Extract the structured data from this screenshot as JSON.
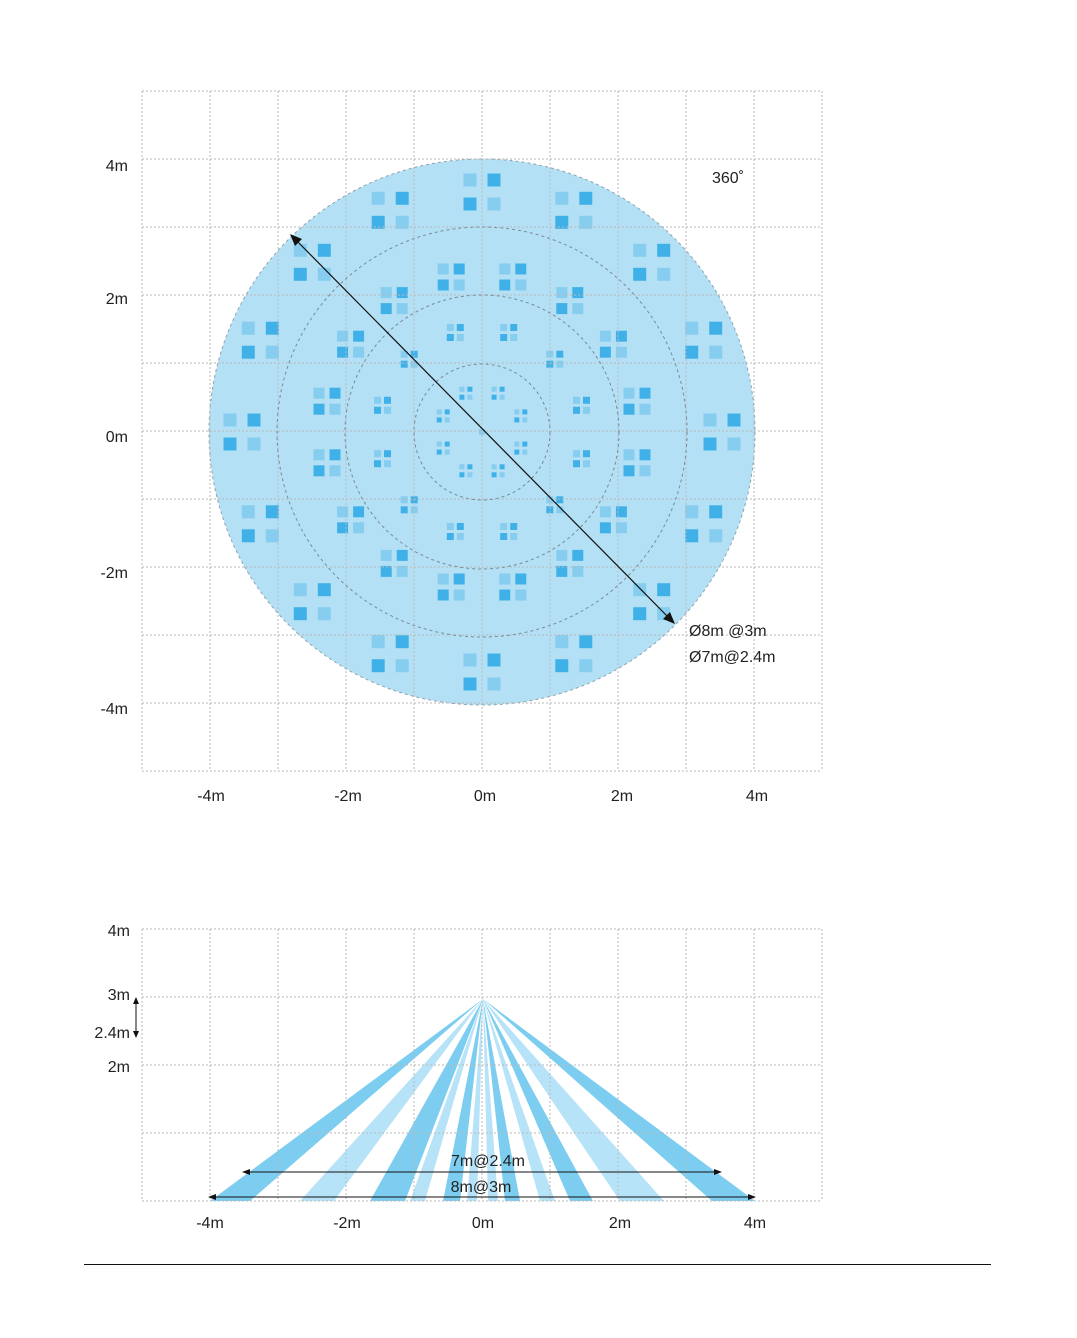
{
  "top_view": {
    "y_ticks": [
      "4m",
      "2m",
      "0m",
      "-2m",
      "-4m"
    ],
    "x_ticks": [
      "-4m",
      "-2m",
      "0m",
      "2m",
      "4m"
    ],
    "angle_label": "360˚",
    "diameter_label_1": "Ø8m @3m",
    "diameter_label_2": "Ø7m@2.4m",
    "coverage_diameter_m": 8,
    "colors": {
      "coverage": "#b3e0f5",
      "zone_dark": "#3fb1e8",
      "zone_light": "#86cdef"
    }
  },
  "side_view": {
    "y_ticks": [
      "4m",
      "3m",
      "2.4m",
      "2m"
    ],
    "x_ticks": [
      "-4m",
      "-2m",
      "0m",
      "2m",
      "4m"
    ],
    "range_label_1": "7m@2.4m",
    "range_label_2": "8m@3m",
    "mount_height_m": 3,
    "colors": {
      "beam_dark": "#7dcdf0",
      "beam_light": "#b6e3f7"
    }
  }
}
